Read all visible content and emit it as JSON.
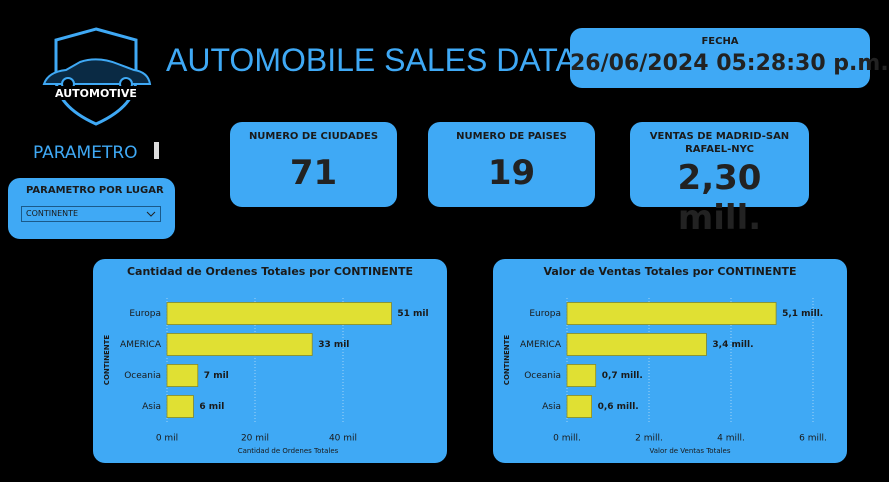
{
  "header": {
    "logo_text": "AUTOMOTIVE",
    "title": "AUTOMOBILE SALES DATA",
    "date_label": "FECHA",
    "date_value": "26/06/2024 05:28:30 p.m."
  },
  "parameter": {
    "label": "PARAMETRO",
    "slicer_title": "PARAMETRO POR LUGAR",
    "slicer_value": "CONTINENTE"
  },
  "cards": [
    {
      "label": "NUMERO DE CIUDADES",
      "value": "71"
    },
    {
      "label": "NUMERO DE PAISES",
      "value": "19"
    },
    {
      "label": "VENTAS DE MADRID-SAN RAFAEL-NYC",
      "value": "2,30 mill."
    }
  ],
  "chart_data": [
    {
      "type": "bar",
      "orientation": "horizontal",
      "title": "Cantidad de Ordenes Totales por CONTINENTE",
      "x_label": "Cantidad de Ordenes Totales",
      "y_label": "CONTINENTE",
      "categories": [
        "Europa",
        "AMERICA",
        "Oceania",
        "Asia"
      ],
      "values": [
        51000,
        33000,
        7000,
        6000
      ],
      "value_labels": [
        "51 mil",
        "33 mil",
        "7 mil",
        "6 mil"
      ],
      "color": "#e0e033",
      "xlim": [
        0,
        55000
      ],
      "xticks": [
        {
          "value": 0,
          "label": "0 mil"
        },
        {
          "value": 20000,
          "label": "20 mil"
        },
        {
          "value": 40000,
          "label": "40 mil"
        }
      ],
      "grid": true
    },
    {
      "type": "bar",
      "orientation": "horizontal",
      "title": "Valor de Ventas Totales por CONTINENTE",
      "x_label": "Valor de Ventas Totales",
      "y_label": "CONTINENTE",
      "categories": [
        "Europa",
        "AMERICA",
        "Oceania",
        "Asia"
      ],
      "values": [
        5100000,
        3400000,
        700000,
        600000
      ],
      "value_labels": [
        "5,1 mill.",
        "3,4 mill.",
        "0,7 mill.",
        "0,6 mill."
      ],
      "color": "#e0e033",
      "xlim": [
        0,
        6000000
      ],
      "xticks": [
        {
          "value": 0,
          "label": "0 mill."
        },
        {
          "value": 2000000,
          "label": "2 mill."
        },
        {
          "value": 4000000,
          "label": "4 mill."
        },
        {
          "value": 6000000,
          "label": "6 mill."
        }
      ],
      "grid": true
    }
  ]
}
